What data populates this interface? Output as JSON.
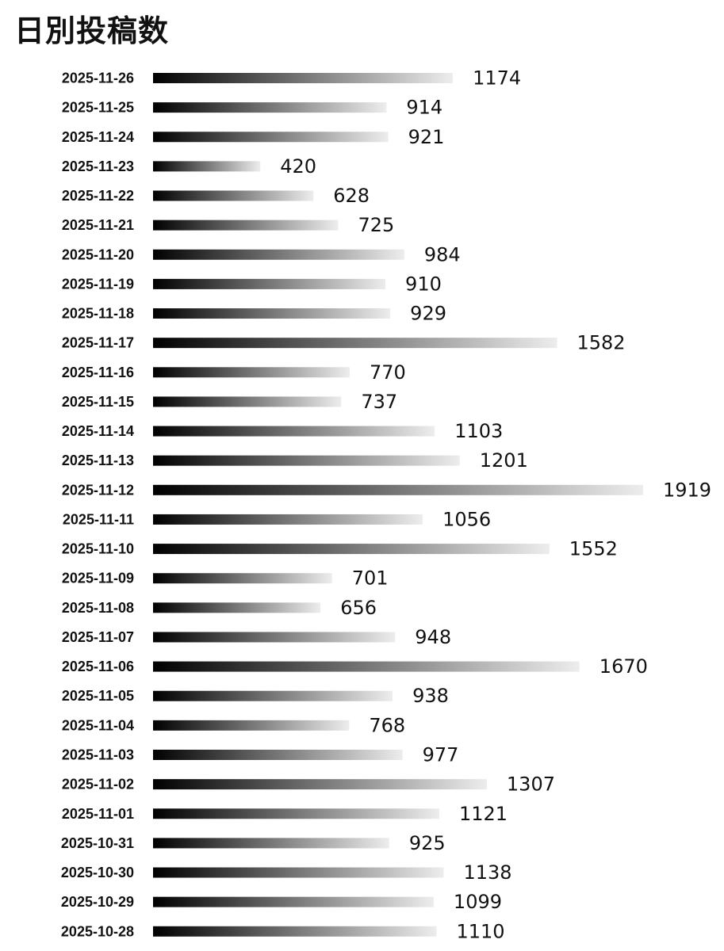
{
  "chart_data": {
    "type": "bar",
    "orientation": "horizontal",
    "title": "日別投稿数",
    "xlabel": "",
    "ylabel": "",
    "xlim": [
      0,
      1919
    ],
    "grid": false,
    "legend": "none",
    "bar_gradient": [
      "#000000",
      "#ededed"
    ],
    "categories": [
      "2025-11-26",
      "2025-11-25",
      "2025-11-24",
      "2025-11-23",
      "2025-11-22",
      "2025-11-21",
      "2025-11-20",
      "2025-11-19",
      "2025-11-18",
      "2025-11-17",
      "2025-11-16",
      "2025-11-15",
      "2025-11-14",
      "2025-11-13",
      "2025-11-12",
      "2025-11-11",
      "2025-11-10",
      "2025-11-09",
      "2025-11-08",
      "2025-11-07",
      "2025-11-06",
      "2025-11-05",
      "2025-11-04",
      "2025-11-03",
      "2025-11-02",
      "2025-11-01",
      "2025-10-31",
      "2025-10-30",
      "2025-10-29",
      "2025-10-28"
    ],
    "values": [
      1174,
      914,
      921,
      420,
      628,
      725,
      984,
      910,
      929,
      1582,
      770,
      737,
      1103,
      1201,
      1919,
      1056,
      1552,
      701,
      656,
      948,
      1670,
      938,
      768,
      977,
      1307,
      1121,
      925,
      1138,
      1099,
      1110
    ]
  }
}
